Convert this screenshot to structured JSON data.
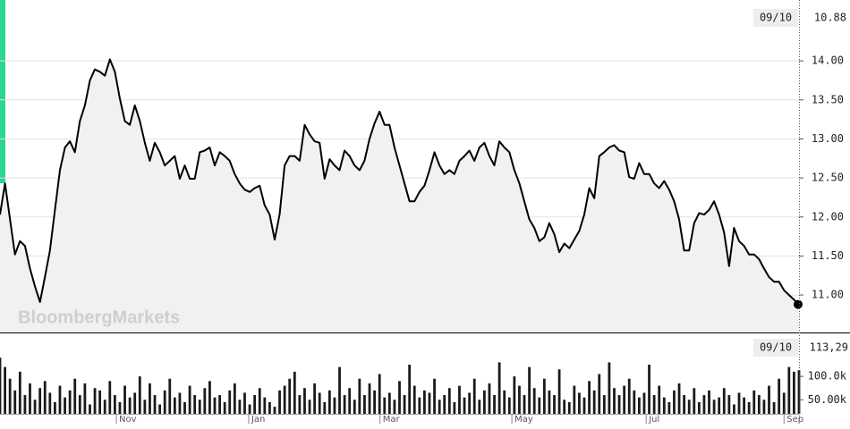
{
  "chart_data": [
    {
      "type": "line",
      "color": "#000000",
      "area_color": "#f1f1f1",
      "grid": true,
      "watermark": "BloombergMarkets",
      "last_date": "09/10",
      "last_label": "10.88",
      "xlim": [
        0,
        160
      ],
      "x": [
        0,
        1,
        2,
        3,
        4,
        5,
        6,
        7,
        8,
        9,
        10,
        11,
        12,
        13,
        14,
        15,
        16,
        17,
        18,
        19,
        20,
        21,
        22,
        23,
        24,
        25,
        26,
        27,
        28,
        29,
        30,
        31,
        32,
        33,
        34,
        35,
        36,
        37,
        38,
        39,
        40,
        41,
        42,
        43,
        44,
        45,
        46,
        47,
        48,
        49,
        50,
        51,
        52,
        53,
        54,
        55,
        56,
        57,
        58,
        59,
        60,
        61,
        62,
        63,
        64,
        65,
        66,
        67,
        68,
        69,
        70,
        71,
        72,
        73,
        74,
        75,
        76,
        77,
        78,
        79,
        80,
        81,
        82,
        83,
        84,
        85,
        86,
        87,
        88,
        89,
        90,
        91,
        92,
        93,
        94,
        95,
        96,
        97,
        98,
        99,
        100,
        101,
        102,
        103,
        104,
        105,
        106,
        107,
        108,
        109,
        110,
        111,
        112,
        113,
        114,
        115,
        116,
        117,
        118,
        119,
        120,
        121,
        122,
        123,
        124,
        125,
        126,
        127,
        128,
        129,
        130,
        131,
        132,
        133,
        134,
        135,
        136,
        137,
        138,
        139,
        140,
        141,
        142,
        143,
        144,
        145,
        146,
        147,
        148,
        149,
        150,
        151,
        152,
        153,
        154,
        155,
        156,
        157,
        158,
        159,
        160
      ],
      "values": [
        12.03,
        12.43,
        11.97,
        11.52,
        11.69,
        11.63,
        11.34,
        11.11,
        10.91,
        11.23,
        11.57,
        12.09,
        12.6,
        12.89,
        12.97,
        12.83,
        13.23,
        13.43,
        13.75,
        13.89,
        13.86,
        13.81,
        14.02,
        13.86,
        13.52,
        13.23,
        13.18,
        13.43,
        13.23,
        12.95,
        12.72,
        12.95,
        12.83,
        12.66,
        12.72,
        12.78,
        12.49,
        12.66,
        12.49,
        12.49,
        12.83,
        12.85,
        12.89,
        12.66,
        12.83,
        12.78,
        12.72,
        12.55,
        12.43,
        12.35,
        12.32,
        12.37,
        12.4,
        12.15,
        12.03,
        11.71,
        12.03,
        12.66,
        12.78,
        12.78,
        12.72,
        13.18,
        13.06,
        12.97,
        12.95,
        12.49,
        12.74,
        12.66,
        12.6,
        12.85,
        12.78,
        12.66,
        12.6,
        12.72,
        13.0,
        13.2,
        13.35,
        13.18,
        13.18,
        12.89,
        12.66,
        12.43,
        12.2,
        12.2,
        12.32,
        12.4,
        12.6,
        12.83,
        12.66,
        12.55,
        12.6,
        12.55,
        12.72,
        12.78,
        12.85,
        12.72,
        12.89,
        12.95,
        12.78,
        12.66,
        12.97,
        12.89,
        12.83,
        12.6,
        12.43,
        12.2,
        11.97,
        11.86,
        11.69,
        11.74,
        11.92,
        11.78,
        11.55,
        11.66,
        11.6,
        11.71,
        11.82,
        12.03,
        12.37,
        12.24,
        12.78,
        12.83,
        12.89,
        12.92,
        12.85,
        12.83,
        12.51,
        12.49,
        12.69,
        12.55,
        12.55,
        12.43,
        12.37,
        12.46,
        12.35,
        12.2,
        11.97,
        11.57,
        11.57,
        11.92,
        12.05,
        12.03,
        12.09,
        12.2,
        12.03,
        11.8,
        11.37,
        11.86,
        11.69,
        11.63,
        11.52,
        11.52,
        11.46,
        11.34,
        11.23,
        11.17,
        11.17,
        11.06,
        11.0,
        10.94,
        10.88
      ],
      "ylim": [
        10.52,
        14.78
      ],
      "yticks": [
        {
          "value": 11,
          "label": "11.00"
        },
        {
          "value": 11.5,
          "label": "11.50"
        },
        {
          "value": 12,
          "label": "12.00"
        },
        {
          "value": 12.5,
          "label": "12.50"
        },
        {
          "value": 13,
          "label": "13.00"
        },
        {
          "value": 13.5,
          "label": "13.50"
        },
        {
          "value": 14,
          "label": "14.00"
        }
      ]
    },
    {
      "type": "bar",
      "color": "#1a1a1a",
      "last_date": "09/10",
      "last_label": "113,29",
      "values": [
        140000,
        120000,
        95000,
        70000,
        110000,
        60000,
        85000,
        50000,
        75000,
        90000,
        65000,
        45000,
        80000,
        55000,
        70000,
        95000,
        60000,
        85000,
        40000,
        75000,
        70000,
        50000,
        90000,
        60000,
        45000,
        80000,
        55000,
        65000,
        100000,
        50000,
        85000,
        60000,
        40000,
        70000,
        95000,
        55000,
        65000,
        45000,
        80000,
        60000,
        50000,
        75000,
        90000,
        55000,
        60000,
        45000,
        70000,
        85000,
        50000,
        65000,
        40000,
        60000,
        75000,
        55000,
        45000,
        35000,
        70000,
        80000,
        95000,
        110000,
        60000,
        75000,
        50000,
        85000,
        65000,
        45000,
        70000,
        55000,
        120000,
        60000,
        75000,
        50000,
        95000,
        60000,
        85000,
        70000,
        105000,
        55000,
        65000,
        50000,
        90000,
        60000,
        125000,
        80000,
        55000,
        70000,
        65000,
        95000,
        50000,
        60000,
        75000,
        45000,
        80000,
        55000,
        65000,
        95000,
        50000,
        70000,
        85000,
        60000,
        130000,
        70000,
        55000,
        100000,
        80000,
        60000,
        120000,
        75000,
        55000,
        95000,
        70000,
        60000,
        115000,
        50000,
        45000,
        80000,
        65000,
        55000,
        90000,
        70000,
        105000,
        60000,
        130000,
        75000,
        60000,
        80000,
        95000,
        70000,
        55000,
        65000,
        125000,
        60000,
        80000,
        55000,
        45000,
        70000,
        85000,
        60000,
        50000,
        75000,
        45000,
        60000,
        70000,
        50000,
        55000,
        75000,
        60000,
        40000,
        65000,
        55000,
        45000,
        70000,
        60000,
        50000,
        80000,
        45000,
        95000,
        65000,
        120000,
        110000,
        113290
      ],
      "ylim": [
        20000,
        192000
      ],
      "yticks": [
        {
          "value": 50000,
          "label": "50.00k"
        },
        {
          "value": 100000,
          "label": "100.0k"
        }
      ],
      "xticks": [
        {
          "value": 23.3,
          "label": "Nov"
        },
        {
          "value": 49.8,
          "label": "Jan"
        },
        {
          "value": 76.1,
          "label": "Mar"
        },
        {
          "value": 102.5,
          "label": "May"
        },
        {
          "value": 129.4,
          "label": "Jul"
        },
        {
          "value": 157,
          "label": "Sep"
        }
      ]
    }
  ]
}
